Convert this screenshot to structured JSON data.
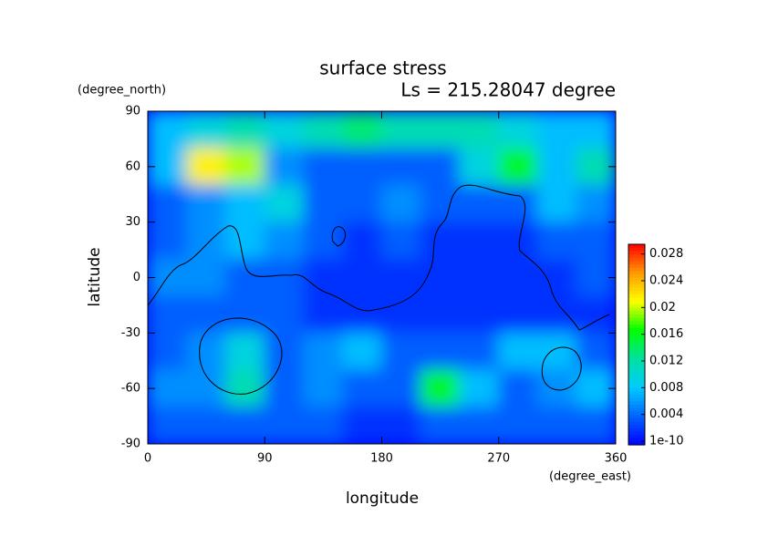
{
  "chart_data": {
    "type": "heatmap",
    "title": "surface stress",
    "subtitle": "Ls = 215.28047 degree",
    "xlabel": "longitude",
    "ylabel": "latitude",
    "xunit": "(degree_east)",
    "yunit": "(degree_north)",
    "x": [
      15,
      45,
      75,
      105,
      135,
      165,
      195,
      225,
      255,
      285,
      315,
      345
    ],
    "y": [
      80,
      60,
      40,
      20,
      0,
      -20,
      -40,
      -60,
      -80
    ],
    "z": [
      [
        0.008,
        0.01,
        0.012,
        0.01,
        0.012,
        0.014,
        0.012,
        0.012,
        0.012,
        0.01,
        0.008,
        0.008
      ],
      [
        0.008,
        0.022,
        0.02,
        0.006,
        0.004,
        0.004,
        0.004,
        0.004,
        0.01,
        0.016,
        0.008,
        0.012
      ],
      [
        0.004,
        0.006,
        0.008,
        0.01,
        0.004,
        0.004,
        0.006,
        0.004,
        0.004,
        0.004,
        0.008,
        0.006
      ],
      [
        0.004,
        0.006,
        0.008,
        0.006,
        0.004,
        0.002,
        0.004,
        0.002,
        0.002,
        0.002,
        0.004,
        0.004
      ],
      [
        0.006,
        0.006,
        0.004,
        0.004,
        0.002,
        0.002,
        0.002,
        0.002,
        0.002,
        0.002,
        0.002,
        0.004
      ],
      [
        0.004,
        0.004,
        0.004,
        0.004,
        0.002,
        0.002,
        0.002,
        0.002,
        0.002,
        0.002,
        0.002,
        0.002
      ],
      [
        0.004,
        0.006,
        0.01,
        0.004,
        0.006,
        0.008,
        0.004,
        0.004,
        0.004,
        0.008,
        0.008,
        0.004
      ],
      [
        0.006,
        0.006,
        0.012,
        0.004,
        0.006,
        0.004,
        0.004,
        0.016,
        0.008,
        0.004,
        0.006,
        0.008
      ],
      [
        0.004,
        0.004,
        0.004,
        0.004,
        0.004,
        0.002,
        0.002,
        0.004,
        0.004,
        0.004,
        0.004,
        0.004
      ]
    ],
    "xlim": [
      0,
      360
    ],
    "xticks": [
      0,
      90,
      180,
      270,
      360
    ],
    "ylim": [
      -90,
      90
    ],
    "yticks": [
      -90,
      -60,
      -30,
      0,
      30,
      60,
      90
    ],
    "zlim": [
      0,
      0.03
    ],
    "zticks": [
      1e-10,
      0.004,
      0.008,
      0.012,
      0.016,
      0.02,
      0.024,
      0.028
    ],
    "colormap": [
      "#0000ff",
      "#0066ff",
      "#00ccff",
      "#00e0a0",
      "#00ff00",
      "#ffff00",
      "#ff9900",
      "#ff0000"
    ]
  }
}
